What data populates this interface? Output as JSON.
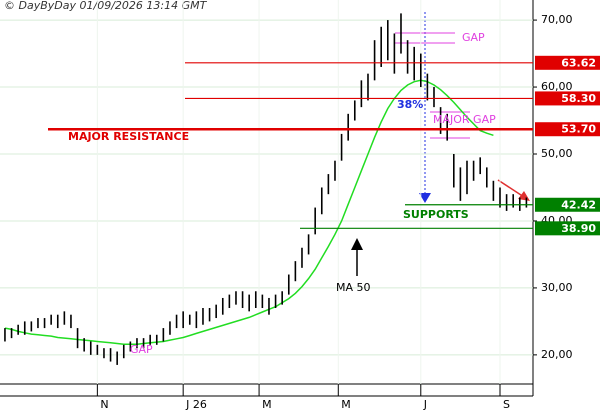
{
  "chart_data": {
    "type": "ohlc",
    "header": "© DayByDay 01/09/2026  13:14 GMT",
    "xlim": [
      -0.75,
      80
    ],
    "xticks": [
      {
        "value": 14,
        "label": "N"
      },
      {
        "value": 27,
        "label": "J 26"
      },
      {
        "value": 38.5,
        "label": "M"
      },
      {
        "value": 50.5,
        "label": "M"
      },
      {
        "value": 63,
        "label": "J"
      },
      {
        "value": 75,
        "label": "S"
      }
    ],
    "ylim": [
      15.5,
      73
    ],
    "yticks": [
      {
        "value": 20,
        "label": "20,00"
      },
      {
        "value": 30,
        "label": "30,00"
      },
      {
        "value": 40,
        "label": "40,00"
      },
      {
        "value": 50,
        "label": "50,00"
      },
      {
        "value": 60,
        "label": "60,00"
      },
      {
        "value": 70,
        "label": "70,00"
      }
    ],
    "grid": true,
    "high": [
      24,
      24,
      24.5,
      25,
      25,
      25.5,
      25.5,
      26,
      26,
      26.5,
      26,
      24,
      22.5,
      22,
      21.5,
      21,
      21,
      20.5,
      21.5,
      22,
      22.5,
      22.5,
      23,
      23,
      24,
      25,
      26,
      26.5,
      26,
      26.5,
      27,
      27,
      27.5,
      28.5,
      29,
      29.5,
      29.5,
      29,
      29.5,
      29,
      28.5,
      29,
      29.5,
      32,
      34,
      36,
      38,
      42,
      45,
      47,
      49,
      53,
      56,
      58,
      61,
      62,
      67,
      69,
      70,
      68,
      71,
      67,
      66,
      65,
      62,
      60,
      57,
      56,
      50,
      48,
      49,
      49,
      49.5,
      48,
      46,
      45,
      44,
      44,
      43.5,
      43.5
    ],
    "low": [
      22,
      22.5,
      23,
      23,
      23.5,
      24,
      24,
      24.5,
      24,
      24.5,
      24,
      21,
      20.5,
      20,
      20,
      19.5,
      19,
      18.5,
      19.5,
      20.5,
      21,
      21,
      21.5,
      21.5,
      22,
      23,
      24,
      24,
      24.5,
      24,
      24.5,
      25,
      25.5,
      26,
      27,
      27.5,
      27,
      26.5,
      27,
      27,
      26,
      27,
      27.5,
      29,
      31,
      33,
      35,
      38,
      41,
      44,
      46,
      49,
      52,
      55,
      57,
      58,
      61,
      63,
      64,
      62,
      65,
      62,
      61,
      60,
      58,
      57,
      53,
      52,
      45,
      43,
      44,
      46,
      47,
      45,
      43,
      42,
      41.5,
      42,
      41.5,
      42
    ],
    "ma": {
      "name": "MA 50",
      "color": "#22dd22",
      "values": [
        24,
        23.8,
        23.5,
        23.3,
        23.1,
        23,
        22.9,
        22.8,
        22.6,
        22.5,
        22.4,
        22.3,
        22.2,
        22.1,
        22,
        21.9,
        21.8,
        21.7,
        21.6,
        21.6,
        21.6,
        21.7,
        21.8,
        21.9,
        22,
        22.2,
        22.4,
        22.6,
        22.9,
        23.2,
        23.5,
        23.8,
        24.1,
        24.4,
        24.7,
        25,
        25.3,
        25.6,
        26,
        26.4,
        26.8,
        27.2,
        27.8,
        28.4,
        29.2,
        30.2,
        31.4,
        32.8,
        34.5,
        36.2,
        38,
        40,
        42.5,
        45,
        47.5,
        50,
        52.5,
        54.8,
        56.8,
        58.3,
        59.5,
        60.3,
        60.8,
        61,
        60.8,
        60.3,
        59.6,
        58.7,
        57.7,
        56.6,
        55.5,
        54.5,
        53.5,
        53.1,
        52.8,
        null,
        null,
        null,
        null,
        null
      ]
    },
    "levels": [
      {
        "value": 63.62,
        "color": "#e00000"
      },
      {
        "value": {
          "value": 58.3,
          "label": "58.30"
        },
        "color": "#e00000"
      },
      {
        "value": {
          "value": 53.7,
          "label": "53.70"
        },
        "color": "#e00000"
      },
      {
        "value": 42.42,
        "color": "#008000"
      },
      {
        "value": {
          "value": 38.9,
          "label": "38.90"
        },
        "color": "#008000"
      }
    ],
    "annotations": [
      "GAP",
      "GAP",
      "MAJOR GAP",
      "MAJOR RESISTANCE",
      "38%",
      "SUPPORTS"
    ]
  }
}
